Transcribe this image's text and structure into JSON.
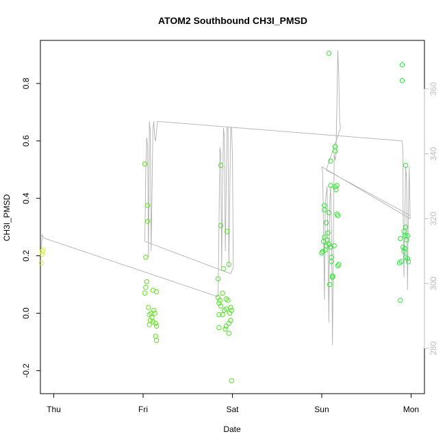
{
  "chart_data": {
    "type": "scatter",
    "title": "ATOM2 Southbound CH3I_PMSD",
    "xlabel": "Date",
    "ylabel": "CH3I_PMSD",
    "x_ticks": [
      {
        "label": "Thu",
        "value": 0.0
      },
      {
        "label": "Fri",
        "value": 1.0
      },
      {
        "label": "Sat",
        "value": 2.0
      },
      {
        "label": "Sun",
        "value": 3.0
      },
      {
        "label": "Mon",
        "value": 4.0
      }
    ],
    "xlim": [
      -0.15,
      4.15
    ],
    "ylim": [
      -0.28,
      0.95
    ],
    "y_ticks": [
      "-0.2",
      "0.0",
      "0.2",
      "0.4",
      "0.6",
      "0.8"
    ],
    "y2lim": [
      266,
      375
    ],
    "y2_ticks": [
      "280",
      "300",
      "320",
      "340",
      "360"
    ],
    "grid": false,
    "colors": {
      "axis": "#000000",
      "secondary_axis": "#bdbdbd",
      "line": "#b0b0b0",
      "thu_points": "#d4f03a",
      "fri_points": "#5fe21a",
      "sat_points": "#4ee51c",
      "sun_points": "#2ee82c",
      "mon_points": "#22ec38"
    },
    "points": [
      {
        "x": -0.14,
        "y": 0.175,
        "c": "#d4f03a"
      },
      {
        "x": -0.13,
        "y": 0.205,
        "c": "#d4f03a"
      },
      {
        "x": -0.13,
        "y": 0.215,
        "c": "#d4f03a"
      },
      {
        "x": -0.12,
        "y": 0.22,
        "c": "#d4f03a"
      },
      {
        "x": 1.02,
        "y": 0.52,
        "c": "#5fe21a"
      },
      {
        "x": 1.05,
        "y": 0.375,
        "c": "#5fe21a"
      },
      {
        "x": 1.05,
        "y": 0.32,
        "c": "#5fe21a"
      },
      {
        "x": 1.03,
        "y": 0.195,
        "c": "#5fe21a"
      },
      {
        "x": 1.04,
        "y": 0.11,
        "c": "#5fe21a"
      },
      {
        "x": 1.03,
        "y": 0.09,
        "c": "#5fe21a"
      },
      {
        "x": 1.02,
        "y": 0.07,
        "c": "#5fe21a"
      },
      {
        "x": 1.11,
        "y": 0.08,
        "c": "#5fe21a"
      },
      {
        "x": 1.15,
        "y": 0.075,
        "c": "#5fe21a"
      },
      {
        "x": 1.06,
        "y": 0.02,
        "c": "#5fe21a"
      },
      {
        "x": 1.09,
        "y": 0.0,
        "c": "#5fe21a"
      },
      {
        "x": 1.12,
        "y": 0.01,
        "c": "#5fe21a"
      },
      {
        "x": 1.07,
        "y": -0.005,
        "c": "#5fe21a"
      },
      {
        "x": 1.1,
        "y": -0.015,
        "c": "#5fe21a"
      },
      {
        "x": 1.13,
        "y": 0.0,
        "c": "#5fe21a"
      },
      {
        "x": 1.08,
        "y": -0.025,
        "c": "#5fe21a"
      },
      {
        "x": 1.14,
        "y": -0.035,
        "c": "#5fe21a"
      },
      {
        "x": 1.07,
        "y": -0.04,
        "c": "#5fe21a"
      },
      {
        "x": 1.11,
        "y": -0.03,
        "c": "#5fe21a"
      },
      {
        "x": 1.15,
        "y": -0.045,
        "c": "#5fe21a"
      },
      {
        "x": 1.14,
        "y": -0.08,
        "c": "#5fe21a"
      },
      {
        "x": 1.15,
        "y": -0.095,
        "c": "#5fe21a"
      },
      {
        "x": 1.87,
        "y": 0.515,
        "c": "#4ee51c"
      },
      {
        "x": 1.87,
        "y": 0.305,
        "c": "#4ee51c"
      },
      {
        "x": 1.94,
        "y": 0.285,
        "c": "#4ee51c"
      },
      {
        "x": 1.96,
        "y": 0.17,
        "c": "#4ee51c"
      },
      {
        "x": 1.9,
        "y": 0.155,
        "c": "#4ee51c"
      },
      {
        "x": 1.84,
        "y": 0.12,
        "c": "#4ee51c"
      },
      {
        "x": 1.89,
        "y": 0.07,
        "c": "#4ee51c"
      },
      {
        "x": 1.84,
        "y": 0.055,
        "c": "#4ee51c"
      },
      {
        "x": 1.86,
        "y": 0.045,
        "c": "#4ee51c"
      },
      {
        "x": 1.85,
        "y": 0.035,
        "c": "#4ee51c"
      },
      {
        "x": 1.93,
        "y": 0.05,
        "c": "#4ee51c"
      },
      {
        "x": 1.95,
        "y": 0.045,
        "c": "#4ee51c"
      },
      {
        "x": 1.98,
        "y": 0.02,
        "c": "#4ee51c"
      },
      {
        "x": 1.97,
        "y": 0.0,
        "c": "#4ee51c"
      },
      {
        "x": 1.93,
        "y": 0.015,
        "c": "#4ee51c"
      },
      {
        "x": 1.99,
        "y": 0.01,
        "c": "#4ee51c"
      },
      {
        "x": 1.87,
        "y": 0.025,
        "c": "#4ee51c"
      },
      {
        "x": 1.91,
        "y": 0.01,
        "c": "#4ee51c"
      },
      {
        "x": 1.89,
        "y": -0.005,
        "c": "#4ee51c"
      },
      {
        "x": 1.85,
        "y": -0.005,
        "c": "#4ee51c"
      },
      {
        "x": 1.98,
        "y": -0.025,
        "c": "#4ee51c"
      },
      {
        "x": 1.96,
        "y": -0.035,
        "c": "#4ee51c"
      },
      {
        "x": 1.93,
        "y": -0.045,
        "c": "#4ee51c"
      },
      {
        "x": 1.85,
        "y": -0.05,
        "c": "#4ee51c"
      },
      {
        "x": 1.92,
        "y": -0.055,
        "c": "#4ee51c"
      },
      {
        "x": 1.96,
        "y": -0.07,
        "c": "#4ee51c"
      },
      {
        "x": 1.99,
        "y": -0.235,
        "c": "#4ee51c"
      },
      {
        "x": 3.08,
        "y": 0.905,
        "c": "#2ee82c"
      },
      {
        "x": 3.15,
        "y": 0.58,
        "c": "#2ee82c"
      },
      {
        "x": 3.15,
        "y": 0.565,
        "c": "#2ee82c"
      },
      {
        "x": 3.1,
        "y": 0.53,
        "c": "#2ee82c"
      },
      {
        "x": 3.15,
        "y": 0.44,
        "c": "#2ee82c"
      },
      {
        "x": 3.16,
        "y": 0.43,
        "c": "#2ee82c"
      },
      {
        "x": 3.17,
        "y": 0.445,
        "c": "#2ee82c"
      },
      {
        "x": 3.1,
        "y": 0.445,
        "c": "#2ee82c"
      },
      {
        "x": 3.03,
        "y": 0.375,
        "c": "#2ee82c"
      },
      {
        "x": 3.03,
        "y": 0.36,
        "c": "#2ee82c"
      },
      {
        "x": 3.08,
        "y": 0.35,
        "c": "#2ee82c"
      },
      {
        "x": 3.17,
        "y": 0.345,
        "c": "#2ee82c"
      },
      {
        "x": 3.18,
        "y": 0.34,
        "c": "#2ee82c"
      },
      {
        "x": 3.05,
        "y": 0.315,
        "c": "#2ee82c"
      },
      {
        "x": 3.07,
        "y": 0.28,
        "c": "#2ee82c"
      },
      {
        "x": 3.03,
        "y": 0.265,
        "c": "#2ee82c"
      },
      {
        "x": 3.06,
        "y": 0.255,
        "c": "#2ee82c"
      },
      {
        "x": 3.02,
        "y": 0.25,
        "c": "#2ee82c"
      },
      {
        "x": 3.08,
        "y": 0.24,
        "c": "#2ee82c"
      },
      {
        "x": 3.05,
        "y": 0.235,
        "c": "#2ee82c"
      },
      {
        "x": 3.1,
        "y": 0.23,
        "c": "#2ee82c"
      },
      {
        "x": 3.14,
        "y": 0.235,
        "c": "#2ee82c"
      },
      {
        "x": 3.04,
        "y": 0.22,
        "c": "#2ee82c"
      },
      {
        "x": 3.01,
        "y": 0.215,
        "c": "#2ee82c"
      },
      {
        "x": 3.0,
        "y": 0.21,
        "c": "#2ee82c"
      },
      {
        "x": 3.11,
        "y": 0.195,
        "c": "#2ee82c"
      },
      {
        "x": 3.11,
        "y": 0.18,
        "c": "#2ee82c"
      },
      {
        "x": 3.19,
        "y": 0.17,
        "c": "#2ee82c"
      },
      {
        "x": 3.18,
        "y": 0.165,
        "c": "#2ee82c"
      },
      {
        "x": 3.12,
        "y": 0.13,
        "c": "#2ee82c"
      },
      {
        "x": 3.12,
        "y": 0.125,
        "c": "#2ee82c"
      },
      {
        "x": 3.09,
        "y": 0.1,
        "c": "#2ee82c"
      },
      {
        "x": 3.9,
        "y": 0.865,
        "c": "#22ec38"
      },
      {
        "x": 3.9,
        "y": 0.81,
        "c": "#22ec38"
      },
      {
        "x": 3.94,
        "y": 0.515,
        "c": "#22ec38"
      },
      {
        "x": 3.94,
        "y": 0.3,
        "c": "#22ec38"
      },
      {
        "x": 3.92,
        "y": 0.285,
        "c": "#22ec38"
      },
      {
        "x": 3.96,
        "y": 0.27,
        "c": "#22ec38"
      },
      {
        "x": 3.93,
        "y": 0.27,
        "c": "#22ec38"
      },
      {
        "x": 3.88,
        "y": 0.26,
        "c": "#22ec38"
      },
      {
        "x": 3.95,
        "y": 0.255,
        "c": "#22ec38"
      },
      {
        "x": 3.91,
        "y": 0.23,
        "c": "#22ec38"
      },
      {
        "x": 3.93,
        "y": 0.225,
        "c": "#22ec38"
      },
      {
        "x": 3.92,
        "y": 0.215,
        "c": "#22ec38"
      },
      {
        "x": 3.94,
        "y": 0.195,
        "c": "#22ec38"
      },
      {
        "x": 3.96,
        "y": 0.19,
        "c": "#22ec38"
      },
      {
        "x": 3.97,
        "y": 0.18,
        "c": "#22ec38"
      },
      {
        "x": 3.89,
        "y": 0.18,
        "c": "#22ec38"
      },
      {
        "x": 3.87,
        "y": 0.175,
        "c": "#22ec38"
      },
      {
        "x": 3.88,
        "y": 0.045,
        "c": "#22ec38"
      }
    ],
    "line_y2": [
      {
        "x": -0.14,
        "y": 310
      },
      {
        "x": -0.13,
        "y": 315
      },
      {
        "x": -0.11,
        "y": 314
      },
      {
        "x": 1.83,
        "y": 296
      },
      {
        "x": 1.84,
        "y": 296
      },
      {
        "x": 1.86,
        "y": 342
      },
      {
        "x": 1.87,
        "y": 340
      },
      {
        "x": 1.88,
        "y": 305
      },
      {
        "x": 1.89,
        "y": 330
      },
      {
        "x": 1.9,
        "y": 348
      },
      {
        "x": 1.91,
        "y": 345
      },
      {
        "x": 1.92,
        "y": 310
      },
      {
        "x": 1.94,
        "y": 348
      },
      {
        "x": 1.95,
        "y": 348
      },
      {
        "x": 1.96,
        "y": 305
      },
      {
        "x": 1.98,
        "y": 348
      },
      {
        "x": 1.99,
        "y": 348
      },
      {
        "x": 2.0,
        "y": 340
      },
      {
        "x": 2.01,
        "y": 305
      },
      {
        "x": 1.98,
        "y": 303
      },
      {
        "x": 1.02,
        "y": 313
      },
      {
        "x": 1.03,
        "y": 335
      },
      {
        "x": 1.04,
        "y": 345
      },
      {
        "x": 1.05,
        "y": 342
      },
      {
        "x": 1.06,
        "y": 308
      },
      {
        "x": 1.07,
        "y": 350
      },
      {
        "x": 1.08,
        "y": 347
      },
      {
        "x": 1.09,
        "y": 310
      },
      {
        "x": 1.11,
        "y": 348
      },
      {
        "x": 1.12,
        "y": 350
      },
      {
        "x": 1.13,
        "y": 345
      },
      {
        "x": 1.14,
        "y": 344
      },
      {
        "x": 1.16,
        "y": 350
      },
      {
        "x": 3.9,
        "y": 344
      },
      {
        "x": 3.91,
        "y": 340
      },
      {
        "x": 3.91,
        "y": 325
      },
      {
        "x": 3.92,
        "y": 302
      },
      {
        "x": 3.93,
        "y": 320
      },
      {
        "x": 3.94,
        "y": 336
      },
      {
        "x": 3.95,
        "y": 332
      },
      {
        "x": 3.96,
        "y": 298
      },
      {
        "x": 3.97,
        "y": 322
      },
      {
        "x": 3.98,
        "y": 336
      },
      {
        "x": 3.99,
        "y": 320
      },
      {
        "x": 3.0,
        "y": 336
      },
      {
        "x": 3.01,
        "y": 334
      },
      {
        "x": 3.02,
        "y": 316
      },
      {
        "x": 3.03,
        "y": 295
      },
      {
        "x": 3.04,
        "y": 325
      },
      {
        "x": 3.06,
        "y": 330
      },
      {
        "x": 3.07,
        "y": 310
      },
      {
        "x": 3.08,
        "y": 288
      },
      {
        "x": 3.09,
        "y": 325
      },
      {
        "x": 3.1,
        "y": 330
      },
      {
        "x": 3.11,
        "y": 316
      },
      {
        "x": 3.12,
        "y": 281
      },
      {
        "x": 3.13,
        "y": 310
      },
      {
        "x": 3.14,
        "y": 340
      },
      {
        "x": 3.15,
        "y": 338
      },
      {
        "x": 3.16,
        "y": 340
      },
      {
        "x": 3.17,
        "y": 355
      },
      {
        "x": 3.18,
        "y": 372
      },
      {
        "x": 3.19,
        "y": 365
      },
      {
        "x": 3.2,
        "y": 350
      },
      {
        "x": 3.21,
        "y": 348
      },
      {
        "x": 3.05,
        "y": 335
      },
      {
        "x": 3.99,
        "y": 321
      }
    ]
  }
}
